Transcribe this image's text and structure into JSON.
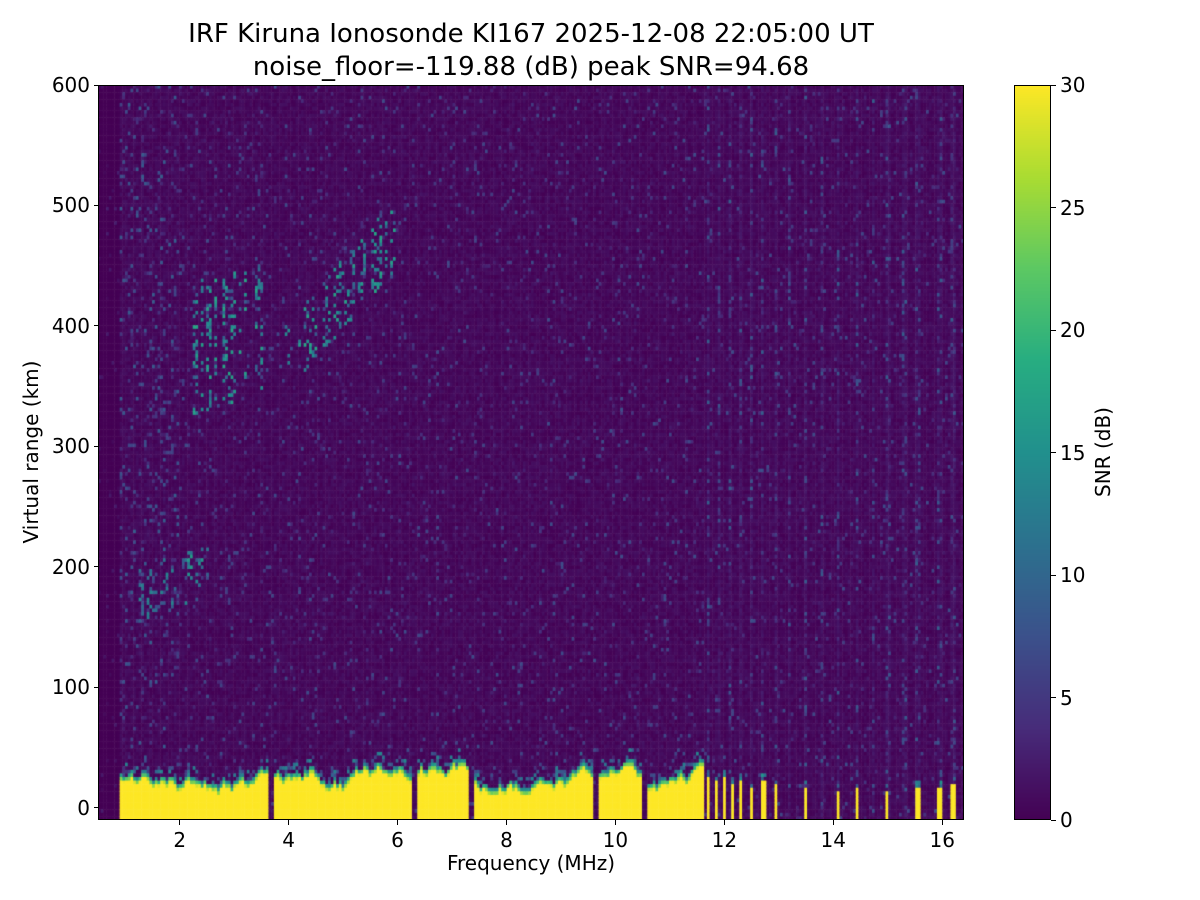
{
  "chart_data": {
    "type": "heatmap",
    "title": "IRF Kiruna Ionosonde KI167 2025-12-08 22:05:00  UT",
    "subtitle": "noise_floor=-119.88 (dB) peak SNR=94.68",
    "xlabel": "Frequency (MHz)",
    "ylabel": "Virtual range (km)",
    "xlim": [
      0.5,
      16.4
    ],
    "ylim": [
      -10,
      600
    ],
    "x_ticks": [
      2,
      4,
      6,
      8,
      10,
      12,
      14,
      16
    ],
    "y_ticks": [
      0,
      100,
      200,
      300,
      400,
      500,
      600
    ],
    "noise_floor_db": -119.88,
    "peak_snr_db": 94.68,
    "colorbar": {
      "label": "SNR (dB)",
      "min": 0,
      "max": 30,
      "ticks": [
        0,
        5,
        10,
        15,
        20,
        25,
        30
      ],
      "colormap": "viridis",
      "stops": [
        {
          "t": 0.0,
          "color": "#440154"
        },
        {
          "t": 0.125,
          "color": "#472c7a"
        },
        {
          "t": 0.25,
          "color": "#3b518b"
        },
        {
          "t": 0.375,
          "color": "#2c718e"
        },
        {
          "t": 0.5,
          "color": "#21908d"
        },
        {
          "t": 0.625,
          "color": "#27ad81"
        },
        {
          "t": 0.75,
          "color": "#5cc863"
        },
        {
          "t": 0.875,
          "color": "#aadc32"
        },
        {
          "t": 1.0,
          "color": "#fde725"
        }
      ]
    },
    "features": {
      "data_start_mhz": 0.9,
      "background": {
        "speckle_probability": 0.1,
        "speckle_snr_max": 7,
        "low_freq_boost_below_mhz": 2.0
      },
      "ground_clutter": {
        "freq_range": [
          0.9,
          11.62
        ],
        "range_top_km_mean": 28,
        "range_top_km_jitter": 10,
        "snr_db": 30,
        "notch_freqs_mhz": [
          3.7,
          6.3,
          7.35,
          9.65,
          10.55
        ]
      },
      "rfi_bars": {
        "freqs_mhz": [
          11.7,
          11.85,
          12.0,
          12.15,
          12.3,
          12.5,
          12.72,
          12.95,
          13.5,
          14.1,
          14.45,
          15.0,
          15.55,
          15.95,
          16.2
        ],
        "top_km": [
          25,
          22,
          25,
          20,
          24,
          18,
          22,
          20,
          18,
          15,
          16,
          14,
          16,
          18,
          20
        ],
        "snr_db": 30
      },
      "rfi_noise_columns_mhz": [
        11.7,
        11.9,
        12.1,
        12.3,
        12.5,
        12.7,
        12.95,
        13.2,
        13.5,
        13.8,
        14.1,
        14.45,
        14.75,
        15.0,
        15.3,
        15.55,
        15.95,
        16.2
      ],
      "echo_traces": [
        {
          "name": "E-region echo",
          "f_mhz": [
            1.25,
            2.6
          ],
          "range_km_start": 175,
          "range_km_end": 200,
          "thickness_km": 45,
          "density": 0.16,
          "snr_db": [
            6,
            14
          ]
        },
        {
          "name": "sporadic echo 200 km",
          "f_mhz": [
            2.0,
            2.45
          ],
          "range_km_start": 197,
          "range_km_end": 205,
          "thickness_km": 25,
          "density": 0.45,
          "snr_db": [
            10,
            17
          ]
        },
        {
          "name": "F-region patchy echo",
          "f_mhz": [
            2.2,
            3.6
          ],
          "range_km_start": 380,
          "range_km_end": 400,
          "thickness_km": 110,
          "density": 0.3,
          "snr_db": [
            8,
            18
          ]
        },
        {
          "name": "F-region ascending echo",
          "f_mhz": [
            3.9,
            6.0
          ],
          "range_km_start": 370,
          "range_km_end": 478,
          "thickness_km": 58,
          "density": 0.28,
          "snr_db": [
            8,
            18
          ]
        }
      ]
    }
  }
}
